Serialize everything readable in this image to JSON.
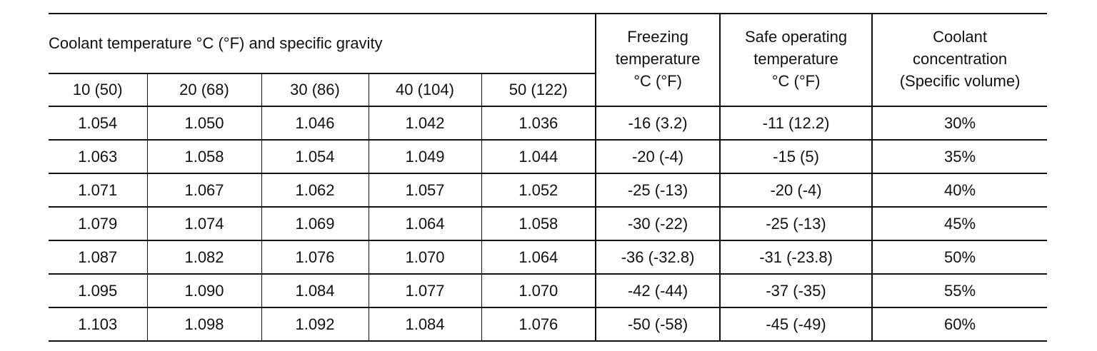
{
  "table": {
    "group_header": "Coolant temperature °C (°F) and specific gravity",
    "freezing_header": [
      "Freezing",
      "temperature",
      "°C (°F)"
    ],
    "safe_header": [
      "Safe operating",
      "temperature",
      "°C (°F)"
    ],
    "concentration_header": [
      "Coolant",
      "concentration",
      "(Specific volume)"
    ],
    "temperature_columns": [
      "10 (50)",
      "20 (68)",
      "30 (86)",
      "40 (104)",
      "50 (122)"
    ],
    "rows": [
      [
        "1.054",
        "1.050",
        "1.046",
        "1.042",
        "1.036",
        "-16 (3.2)",
        "-11 (12.2)",
        "30%"
      ],
      [
        "1.063",
        "1.058",
        "1.054",
        "1.049",
        "1.044",
        "-20 (-4)",
        "-15 (5)",
        "35%"
      ],
      [
        "1.071",
        "1.067",
        "1.062",
        "1.057",
        "1.052",
        "-25 (-13)",
        "-20 (-4)",
        "40%"
      ],
      [
        "1.079",
        "1.074",
        "1.069",
        "1.064",
        "1.058",
        "-30 (-22)",
        "-25 (-13)",
        "45%"
      ],
      [
        "1.087",
        "1.082",
        "1.076",
        "1.070",
        "1.064",
        "-36 (-32.8)",
        "-31 (-23.8)",
        "50%"
      ],
      [
        "1.095",
        "1.090",
        "1.084",
        "1.077",
        "1.070",
        "-42 (-44)",
        "-37 (-35)",
        "55%"
      ],
      [
        "1.103",
        "1.098",
        "1.092",
        "1.084",
        "1.076",
        "-50 (-58)",
        "-45 (-49)",
        "60%"
      ]
    ]
  }
}
